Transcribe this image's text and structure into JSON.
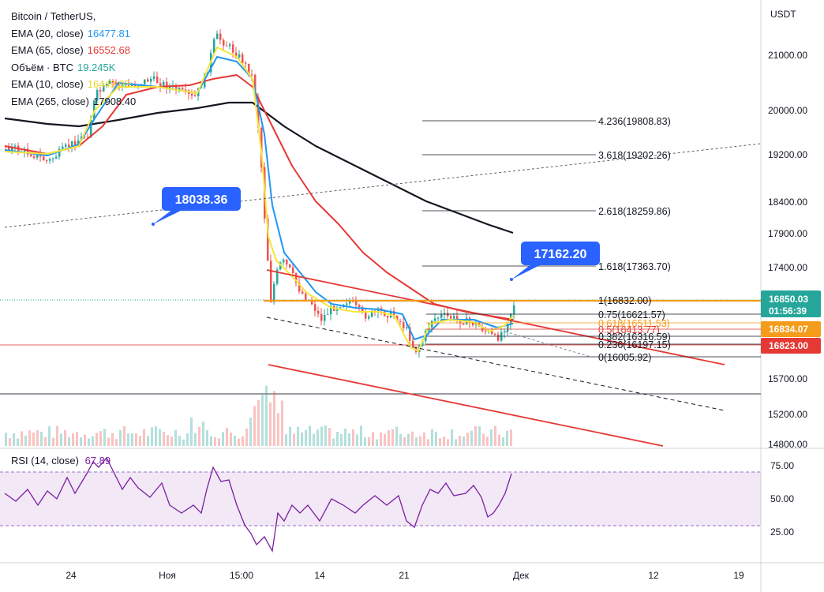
{
  "legend": {
    "symbol": "Bitcoin / TetherUS,",
    "items": [
      {
        "label": "EMA (20, close)",
        "value": "16477.81",
        "color": "#2196f3"
      },
      {
        "label": "EMA (65, close)",
        "value": "16552.68",
        "color": "#e53935"
      },
      {
        "label": "Объём · BTC",
        "value": "19.245K",
        "color": "#26a69a"
      },
      {
        "label": "EMA (10, close)",
        "value": "16449.05",
        "color": "#f5e63a"
      },
      {
        "label": "EMA (265, close)",
        "value": "17908.40",
        "color": "#131722"
      }
    ]
  },
  "rsi_legend": {
    "label": "RSI (14, close)",
    "value": "67.89",
    "color": "#7b1fa2"
  },
  "currency": "USDT",
  "chart_data": {
    "type": "candlestick",
    "y_axis_ticks": [
      "21000.00",
      "20000.00",
      "19200.00",
      "18400.00",
      "17900.00",
      "17400.00",
      "15700.00",
      "15200.00",
      "14800.00"
    ],
    "rsi_axis_ticks": [
      "75.00",
      "50.00",
      "25.00"
    ],
    "x_axis_ticks": [
      "24",
      "Ноя",
      "15:00",
      "14",
      "21",
      "Дек",
      "12",
      "19"
    ],
    "fib_levels": [
      {
        "label": "4.236(19808.83)",
        "color": "#131722"
      },
      {
        "label": "3.618(19202.26)",
        "color": "#131722"
      },
      {
        "label": "2.618(18259.86)",
        "color": "#131722"
      },
      {
        "label": "1.618(17363.70)",
        "color": "#131722"
      },
      {
        "label": "1(16832.00)",
        "color": "#131722"
      },
      {
        "label": "0.75(16621.57)",
        "color": "#131722"
      },
      {
        "label": "0.618(16511.53)",
        "color": "#f59c1a"
      },
      {
        "label": "0.5(16413.77)",
        "color": "#e53935"
      },
      {
        "label": "0.382(16316.59)",
        "color": "#131722"
      },
      {
        "label": "0.236(16197.15)",
        "color": "#131722"
      },
      {
        "label": "0(16005.92)",
        "color": "#131722"
      }
    ],
    "callouts": [
      "18038.36",
      "17162.20"
    ],
    "price_tags": [
      {
        "value": "16850.03",
        "extra": "01:56:39",
        "color": "#26a69a"
      },
      {
        "value": "16834.07",
        "color": "#f59c1a"
      },
      {
        "value": "16823.00",
        "color": "#e53935"
      }
    ],
    "rsi_current": 67.89
  }
}
